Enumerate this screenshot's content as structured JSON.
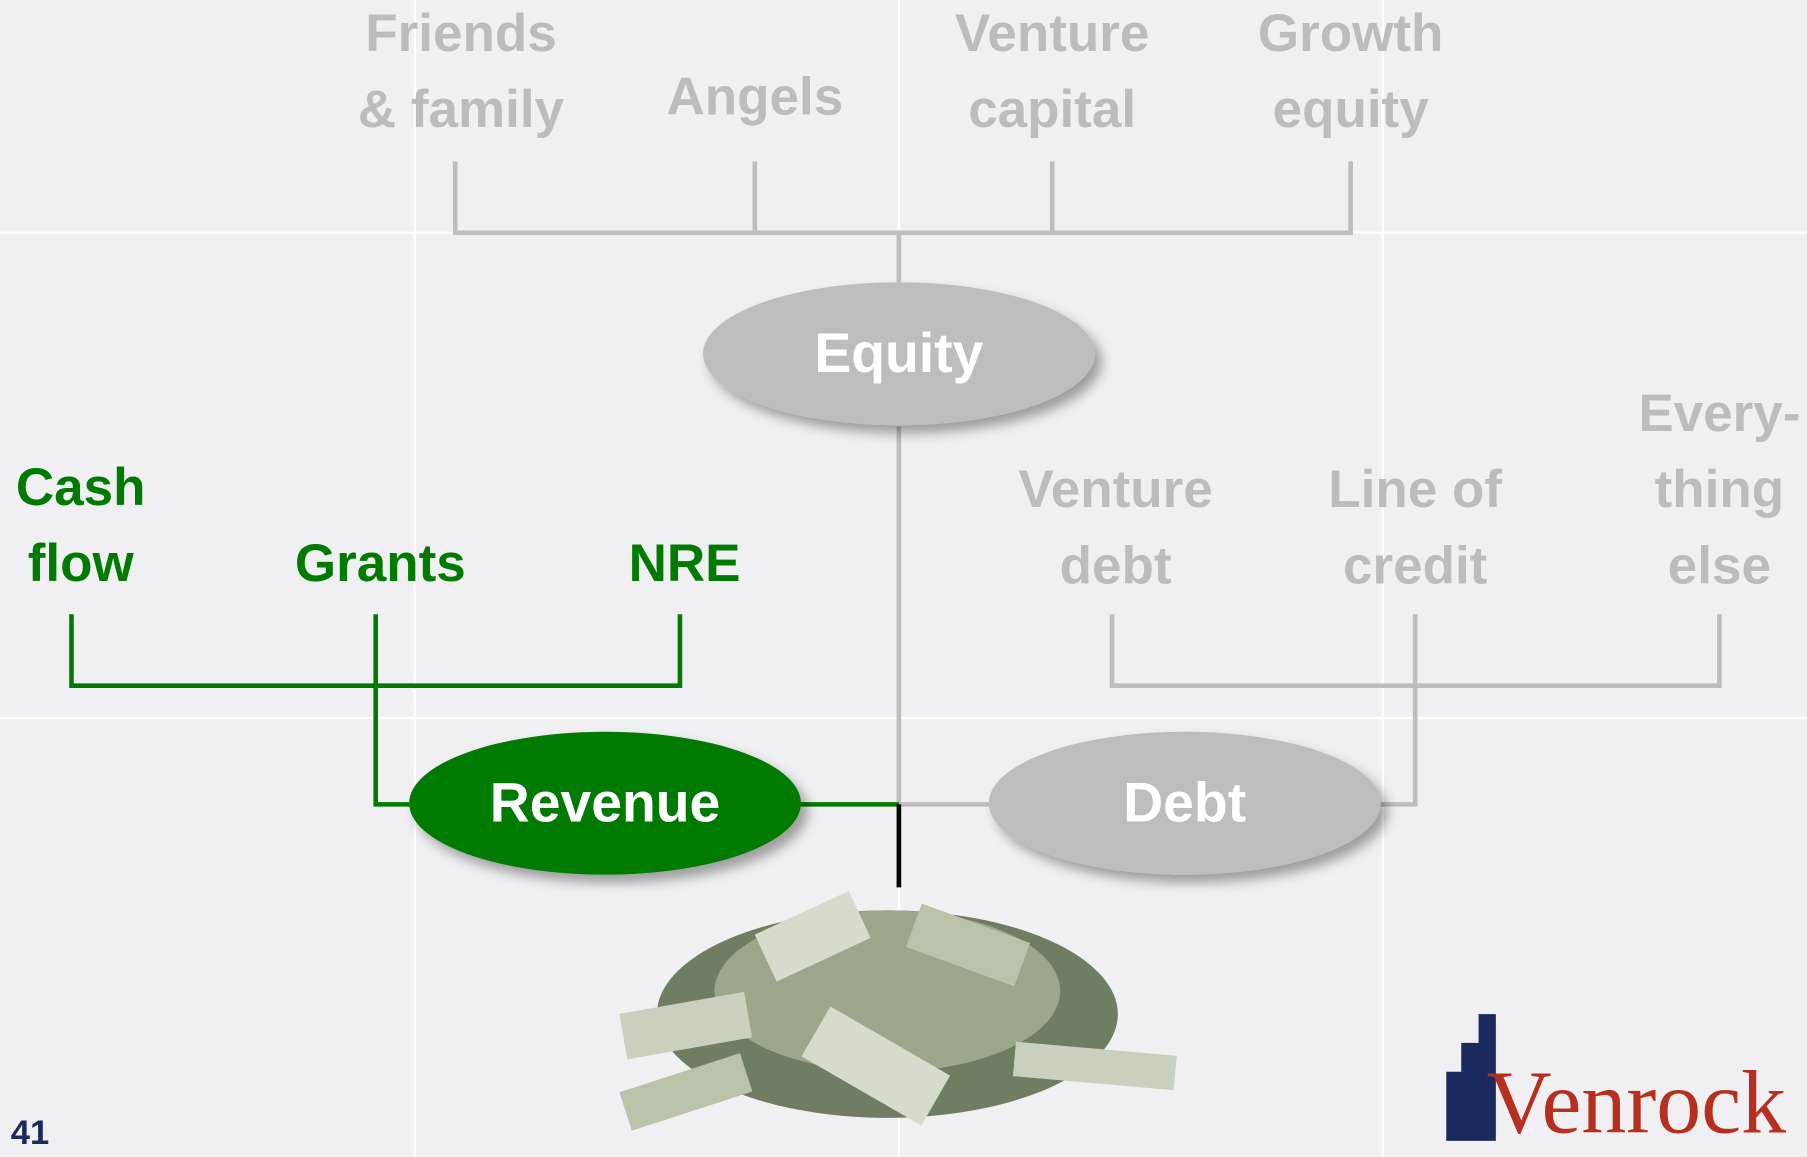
{
  "equity": {
    "label": "Equity",
    "sources": [
      [
        "Friends",
        "& family"
      ],
      [
        "Angels"
      ],
      [
        "Venture",
        "capital"
      ],
      [
        "Growth",
        "equity"
      ]
    ]
  },
  "revenue": {
    "label": "Revenue",
    "sources": [
      [
        "Cash",
        "flow"
      ],
      [
        "Grants"
      ],
      [
        "NRE"
      ]
    ]
  },
  "debt": {
    "label": "Debt",
    "sources": [
      [
        "Venture",
        "debt"
      ],
      [
        "Line of",
        "credit"
      ],
      [
        "Every-",
        "thing",
        "else"
      ]
    ]
  },
  "page_number": "41",
  "logo": "Venrock"
}
